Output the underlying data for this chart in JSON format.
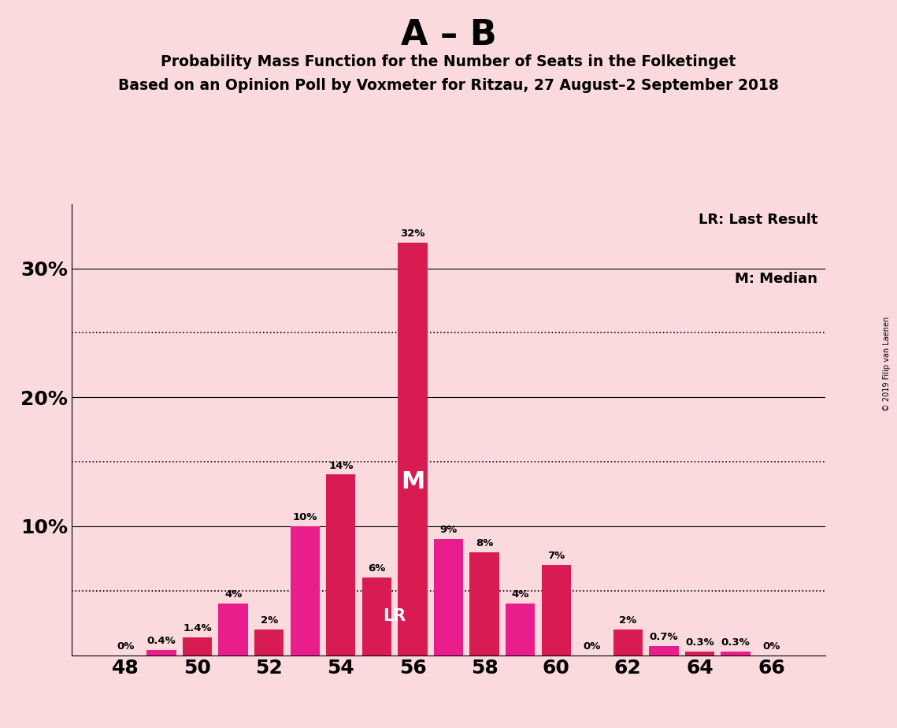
{
  "title_main": "A – B",
  "title_sub1": "Probability Mass Function for the Number of Seats in the Folketinget",
  "title_sub2": "Based on an Opinion Poll by Voxmeter for Ritzau, 27 August–2 September 2018",
  "copyright": "© 2019 Filip van Laenen",
  "seats": [
    48,
    49,
    50,
    51,
    52,
    53,
    54,
    55,
    56,
    57,
    58,
    59,
    60,
    61,
    62,
    63,
    64,
    65,
    66
  ],
  "values": [
    0.0,
    0.4,
    1.4,
    4.0,
    2.0,
    10.0,
    14.0,
    6.0,
    32.0,
    9.0,
    8.0,
    4.0,
    7.0,
    0.0,
    2.0,
    0.7,
    0.3,
    0.3,
    0.0
  ],
  "labels": [
    "0%",
    "0.4%",
    "1.4%",
    "4%",
    "2%",
    "10%",
    "14%",
    "6%",
    "32%",
    "9%",
    "8%",
    "4%",
    "7%",
    "0%",
    "2%",
    "0.7%",
    "0.3%",
    "0.3%",
    "0%"
  ],
  "last_result_seat": 55,
  "median_seat": 56,
  "bar_color_red": "#D81B50",
  "bar_color_pink": "#E91E8C",
  "background_color": "#FADADD",
  "ylim": [
    0,
    35
  ],
  "legend_lr": "LR: Last Result",
  "legend_m": "M: Median",
  "xtick_positions": [
    48,
    50,
    52,
    54,
    56,
    58,
    60,
    62,
    64,
    66
  ]
}
